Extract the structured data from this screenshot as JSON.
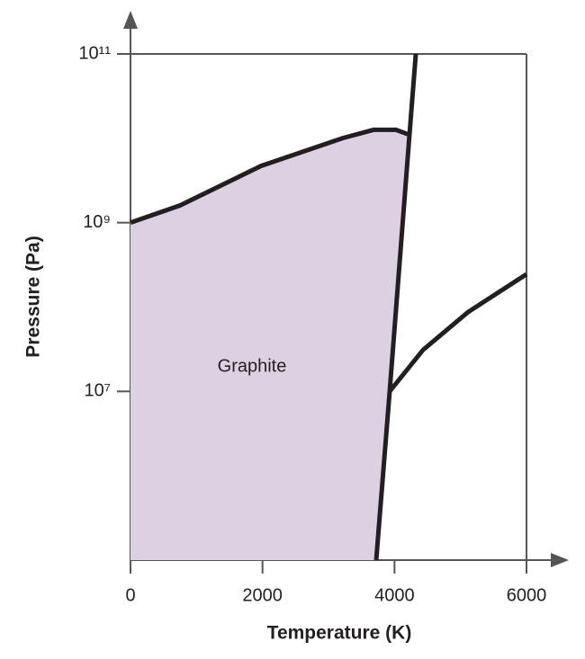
{
  "chart_data": {
    "type": "phase-diagram",
    "x_label": "Temperature (K)",
    "y_label": "Pressure (Pa)",
    "xlim": [
      0,
      6000
    ],
    "xticks": [
      0,
      2000,
      4000,
      6000
    ],
    "ylim": [
      100000,
      100000000000
    ],
    "yscale": "log",
    "yticks": [
      {
        "value": 10000000,
        "label": "10⁷"
      },
      {
        "value": 1000000000,
        "label": "10⁹"
      },
      {
        "value": 100000000000,
        "label": "10¹¹"
      }
    ],
    "region_color": "#dcd0e3",
    "annotation": "Graphite",
    "series": [
      {
        "color": "#231f20",
        "x": [
          0,
          750,
          1977,
          3205,
          3682,
          4023,
          4227
        ],
        "values": [
          1000000000,
          1600000000,
          4700000000,
          10000000000,
          12600000000,
          12600000000,
          11000000000
        ]
      },
      {
        "color": "#231f20",
        "x": [
          3723,
          3927,
          4227,
          4323
        ],
        "values": [
          100000,
          10000000,
          11000000000,
          100000000000
        ]
      },
      {
        "color": "#231f20",
        "x": [
          3927,
          4432,
          5114,
          6000
        ],
        "values": [
          10000000,
          31000000,
          87000000,
          245000000
        ]
      }
    ]
  }
}
